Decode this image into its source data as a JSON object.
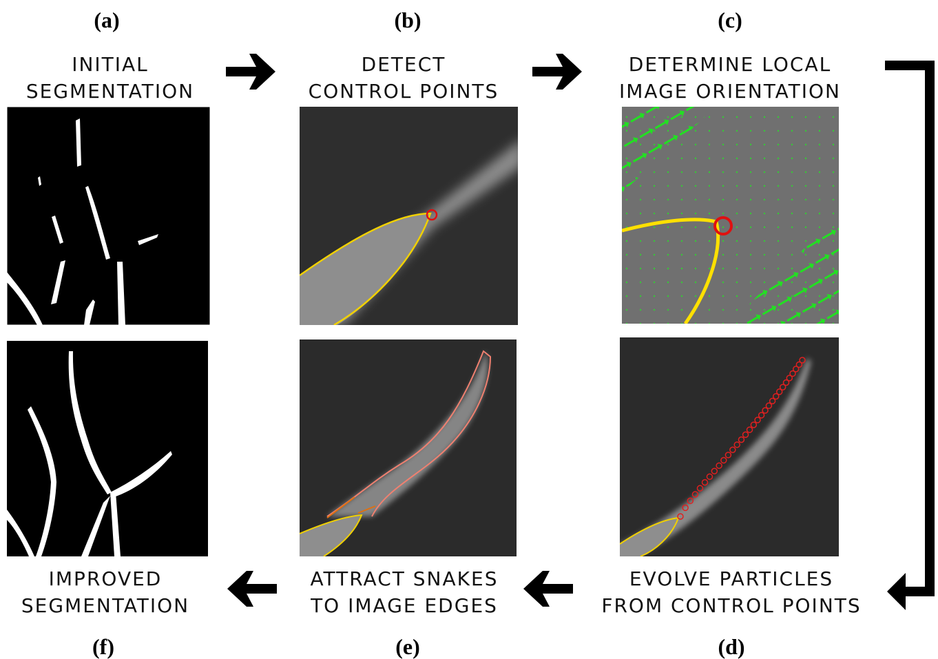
{
  "panels": [
    {
      "label": "(a)",
      "caption": [
        "INITIAL",
        "SEGMENTATION"
      ]
    },
    {
      "label": "(b)",
      "caption": [
        "DETECT",
        "CONTROL POINTS"
      ]
    },
    {
      "label": "(c)",
      "caption": [
        "DETERMINE LOCAL",
        "IMAGE ORIENTATION"
      ]
    },
    {
      "label": "(d)",
      "caption": [
        "EVOLVE PARTICLES",
        "FROM CONTROL POINTS"
      ]
    },
    {
      "label": "(e)",
      "caption": [
        "ATTRACT SNAKES",
        "TO IMAGE EDGES"
      ]
    },
    {
      "label": "(f)",
      "caption": [
        "IMPROVED",
        "SEGMENTATION"
      ]
    }
  ]
}
